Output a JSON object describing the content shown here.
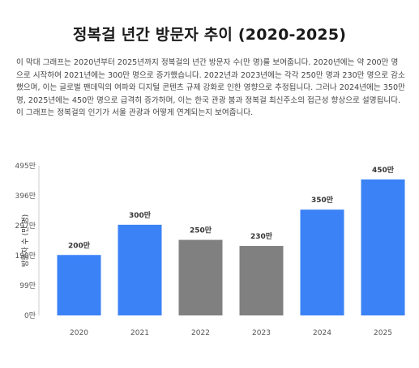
{
  "page": {
    "title": "정복걸 년간 방문자 추이 (2020-2025)",
    "description": "이 막대 그래프는 2020년부터 2025년까지 정복걸의 년간 방문자 수(만 명)를 보여줍니다. 2020년에는 약 200만 명으로 시작하여 2021년에는 300만 명으로 증가했습니다. 2022년과 2023년에는 각각 250만 명과 230만 명으로 감소했으며, 이는 글로벌 팬데믹의 여파와 디지털 콘텐츠 규제 강화로 인한 영향으로 추정됩니다. 그러나 2024년에는 350만 명, 2025년에는 450만 명으로 급격히 증가하며, 이는 한국 관광 붐과 정복걸 최신주소의 접근성 향상으로 설명됩니다. 이 그래프는 정복걸의 인기가 서울 관광과 어떻게 연계되는지 보여줍니다."
  },
  "chart_data": {
    "type": "bar",
    "categories": [
      "2020",
      "2021",
      "2022",
      "2023",
      "2024",
      "2025"
    ],
    "values": [
      200,
      300,
      250,
      230,
      350,
      450
    ],
    "data_labels": [
      "200만",
      "300만",
      "250만",
      "230만",
      "350만",
      "450만"
    ],
    "ylabel": "방문자 수 (만 명)",
    "yticks": [
      0,
      99,
      198,
      297,
      396,
      495
    ],
    "ytick_labels": [
      "0만",
      "99만",
      "198만",
      "297만",
      "396만",
      "495만"
    ],
    "ylim": [
      0,
      495
    ],
    "grid": false,
    "colors": {
      "increase": "#3b82f6",
      "decrease": "#808080"
    },
    "bar_colors": [
      "increase",
      "increase",
      "decrease",
      "decrease",
      "increase",
      "increase"
    ]
  }
}
